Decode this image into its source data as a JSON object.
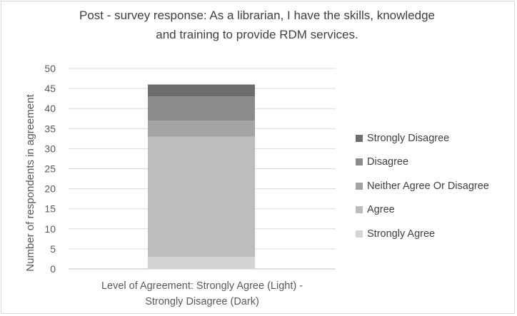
{
  "chart_data": {
    "type": "bar",
    "stacked": true,
    "title_line1": "Post - survey response: As a librarian, I have the skills, knowledge",
    "title_line2": "and training to provide RDM services.",
    "ylabel": "Number of respondents in agreement",
    "xlabel_line1": "Level of Agreement: Strongly Agree (Light) -",
    "xlabel_line2": "Strongly Disagree (Dark)",
    "ylim": [
      0,
      50
    ],
    "yticks": [
      "0",
      "5",
      "10",
      "15",
      "20",
      "25",
      "30",
      "35",
      "40",
      "45",
      "50"
    ],
    "grid": true,
    "legend_position": "right",
    "series": [
      {
        "name": "Strongly Agree",
        "value": 3,
        "color": "#d4d4d4"
      },
      {
        "name": "Agree",
        "value": 30,
        "color": "#bdbdbd"
      },
      {
        "name": "Neither Agree Or Disagree",
        "value": 4,
        "color": "#a3a3a3"
      },
      {
        "name": "Disagree",
        "value": 6,
        "color": "#8c8c8c"
      },
      {
        "name": "Strongly Disagree",
        "value": 3,
        "color": "#6d6d6d"
      }
    ]
  }
}
